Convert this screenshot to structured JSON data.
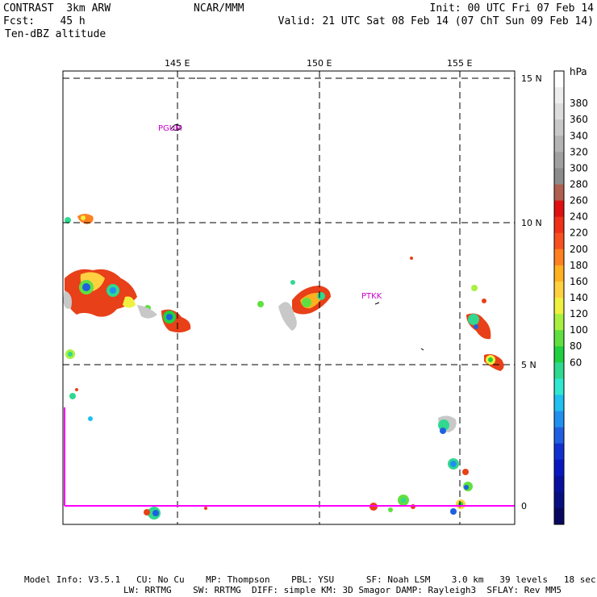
{
  "header": {
    "line1_left": "CONTRAST  3km ARW",
    "line1_center": "NCAR/MMM",
    "line1_right": "Init: 00 UTC Fri 07 Feb 14",
    "line2_left": "Fcst:    45 h",
    "line2_right": "Valid: 21 UTC Sat 08 Feb 14 (07 ChT Sun 09 Feb 14)",
    "line3_left": "Ten-dBZ altitude"
  },
  "map": {
    "lon_labels": [
      "145 E",
      "150 E",
      "155 E"
    ],
    "lat_labels": [
      "15 N",
      "10 N",
      "5 N",
      "0"
    ],
    "stations": [
      "PGUM",
      "PTKK"
    ],
    "colors": {
      "grid": "#000000",
      "boundary": "#ff00ff",
      "station": "#cc00cc"
    }
  },
  "colorbar": {
    "unit": "hPa",
    "labels": [
      "380",
      "360",
      "340",
      "320",
      "300",
      "280",
      "260",
      "240",
      "220",
      "200",
      "180",
      "160",
      "140",
      "120",
      "100",
      "80",
      "60"
    ],
    "colors": [
      "#ffffff",
      "#eeeeee",
      "#dddddd",
      "#c8c8c8",
      "#b4b4b4",
      "#a0a0a0",
      "#8c8c8c",
      "#b06050",
      "#e01010",
      "#f03018",
      "#f85020",
      "#ff8020",
      "#ffb020",
      "#ffd040",
      "#f0f040",
      "#a8f040",
      "#60e040",
      "#20d040",
      "#30d890",
      "#30e8d0",
      "#20c0f0",
      "#2090f0",
      "#2060e0",
      "#1030d0",
      "#0818c0",
      "#0810a0",
      "#081080",
      "#080860"
    ]
  },
  "footer": {
    "line1": "Model Info: V3.5.1   CU: No Cu    MP: Thompson    PBL: YSU      SF: Noah LSM    3.0 km   39 levels   18 sec",
    "line2": "LW: RRTMG    SW: RRTMG  DIFF: simple KM: 3D Smagor DAMP: Rayleigh3  SFLAY: Rev MM5"
  }
}
